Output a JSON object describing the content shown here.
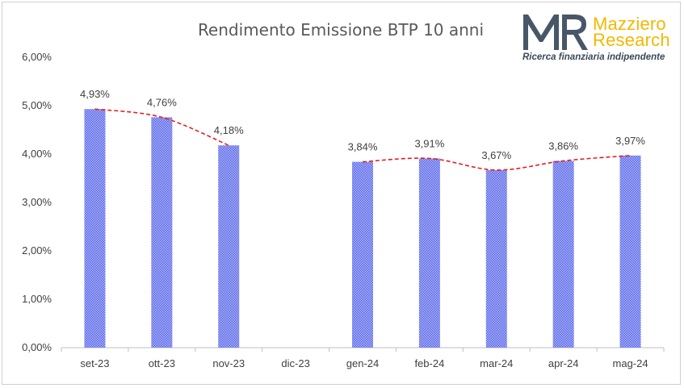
{
  "brand": {
    "word1": "Mazziero",
    "word2": "Research",
    "tagline": "Ricerca finanziaria indipendente",
    "mark_color": "#475767",
    "accent_color": "#f2b800"
  },
  "chart_data": {
    "type": "bar",
    "title": "Rendimento Emissione BTP 10 anni",
    "xlabel": "",
    "ylabel": "",
    "categories": [
      "set-23",
      "ott-23",
      "nov-23",
      "dic-23",
      "gen-24",
      "feb-24",
      "mar-24",
      "apr-24",
      "mag-24"
    ],
    "values": [
      4.93,
      4.76,
      4.18,
      null,
      3.84,
      3.91,
      3.67,
      3.86,
      3.97
    ],
    "value_labels": [
      "4,93%",
      "4,76%",
      "4,18%",
      "",
      "3,84%",
      "3,91%",
      "3,67%",
      "3,86%",
      "3,97%"
    ],
    "ylim": [
      0,
      6
    ],
    "yticks": [
      0,
      1,
      2,
      3,
      4,
      5,
      6
    ],
    "ytick_labels": [
      "0,00%",
      "1,00%",
      "2,00%",
      "3,00%",
      "4,00%",
      "5,00%",
      "6,00%"
    ],
    "bar_color": "#7b86f0",
    "trend_line": {
      "style": "dashed",
      "color": "#e02020",
      "smooth": true,
      "segments_break_on_missing": true
    },
    "grid": false,
    "legend": "none"
  }
}
